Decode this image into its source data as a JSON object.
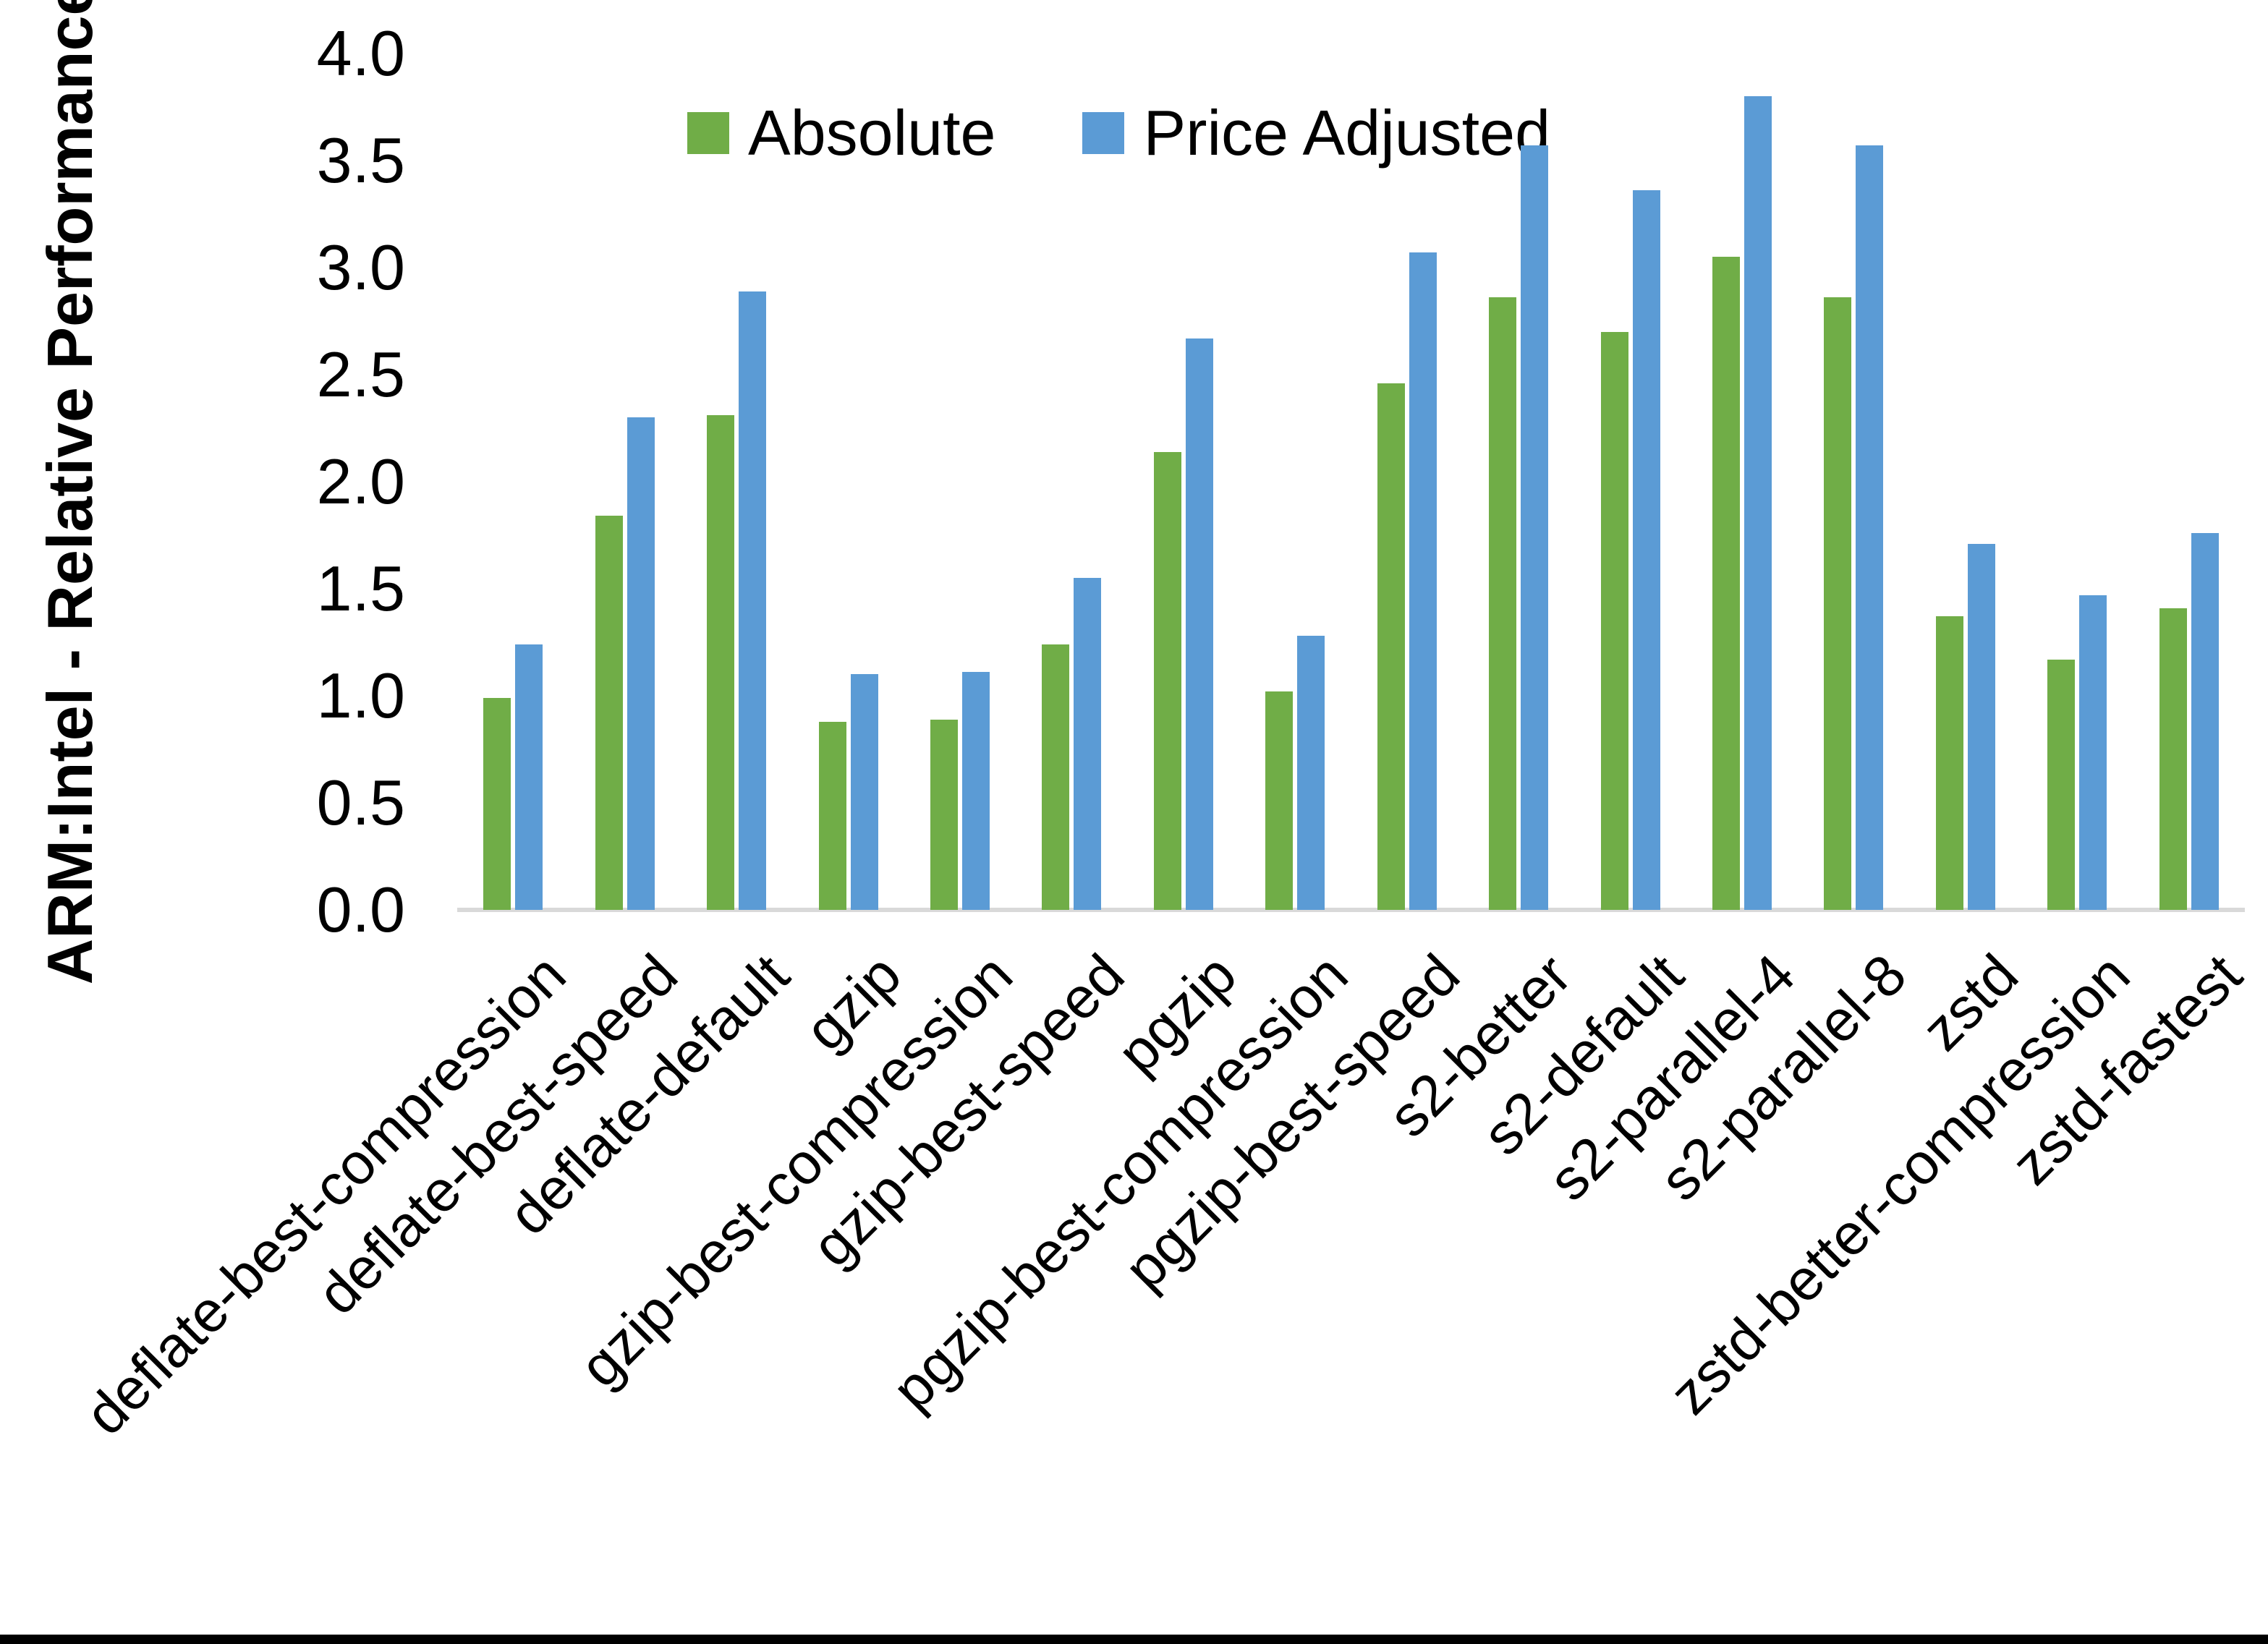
{
  "chart_data": {
    "type": "bar",
    "title": "",
    "ylabel": "ARM:Intel - Relative Performance",
    "xlabel": "",
    "ylim": [
      0,
      4.0
    ],
    "y_ticks": [
      "0.0",
      "0.5",
      "1.0",
      "1.5",
      "2.0",
      "2.5",
      "3.0",
      "3.5",
      "4.0"
    ],
    "grid": "off",
    "legend_position": "top-center",
    "categories": [
      "deflate-best-compression",
      "deflate-best-speed",
      "deflate-default",
      "gzip",
      "gzip-best-compression",
      "gzip-best-speed",
      "pgzip",
      "pgzip-best-compression",
      "pgzip-best-speed",
      "s2-better",
      "s2-default",
      "s2-parallel-4",
      "s2-parallel-8",
      "zstd",
      "zstd-better-compression",
      "zstd-fastest"
    ],
    "series": [
      {
        "name": "Absolute",
        "color": "#70AD47",
        "values": [
          0.99,
          1.84,
          2.31,
          0.88,
          0.89,
          1.24,
          2.14,
          1.02,
          2.46,
          2.86,
          2.7,
          3.05,
          2.86,
          1.37,
          1.17,
          1.41
        ]
      },
      {
        "name": "Price Adjusted",
        "color": "#5B9BD5",
        "values": [
          1.24,
          2.3,
          2.89,
          1.1,
          1.11,
          1.55,
          2.67,
          1.28,
          3.07,
          3.57,
          3.36,
          3.8,
          3.57,
          1.71,
          1.47,
          1.76
        ]
      }
    ],
    "colors": {
      "axis_line": "#D9D9D9",
      "text": "#000000",
      "bottom_border": "#000000"
    }
  }
}
